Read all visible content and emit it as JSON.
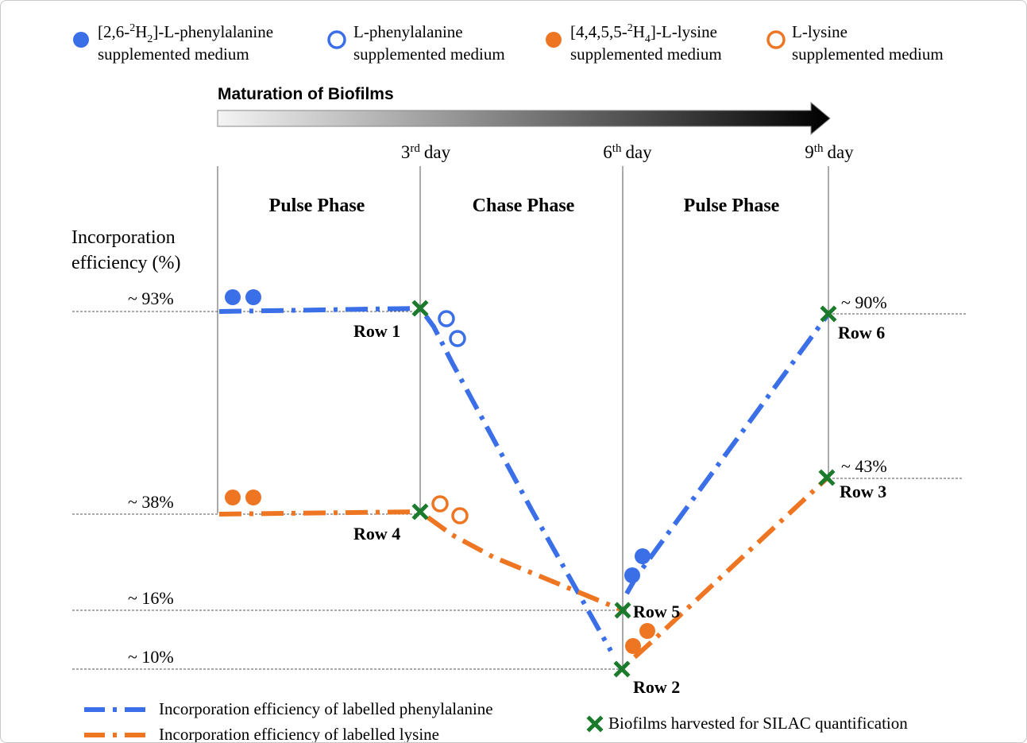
{
  "colors": {
    "phe": "#3b6fe8",
    "lys": "#ee7623",
    "harvest": "#1c7a2c",
    "guide": "#555555",
    "arrow_light": "#f4f4f4",
    "arrow_dark": "#000000"
  },
  "legend_top": [
    {
      "marker": "filled-circle",
      "color_key": "phe",
      "line1_prefix": "[2,6-",
      "line1_sup": "2",
      "line1_mid": "H",
      "line1_sub": "2",
      "line1_suffix": "]-L-phenylalanine",
      "line2": "supplemented medium"
    },
    {
      "marker": "open-circle",
      "color_key": "phe",
      "line1": "L-phenylalanine",
      "line2": "supplemented medium"
    },
    {
      "marker": "filled-circle",
      "color_key": "lys",
      "line1_prefix": "[4,4,5,5-",
      "line1_sup": "2",
      "line1_mid": "H",
      "line1_sub": "4",
      "line1_suffix": "]-L-lysine",
      "line2": "supplemented medium"
    },
    {
      "marker": "open-circle",
      "color_key": "lys",
      "line1": "L-lysine",
      "line2": "supplemented medium"
    }
  ],
  "timeline": {
    "title": "Maturation of Biofilms",
    "days": [
      {
        "num": "3",
        "sup": "rd",
        "word": "day"
      },
      {
        "num": "6",
        "sup": "th",
        "word": "day"
      },
      {
        "num": "9",
        "sup": "th",
        "word": "day"
      }
    ]
  },
  "phases": [
    "Pulse Phase",
    "Chase Phase",
    "Pulse Phase"
  ],
  "y_axis": {
    "label_line1": "Incorporation",
    "label_line2": "efficiency (%)",
    "levels_left": [
      "~ 93%",
      "~ 38%",
      "~ 16%",
      "~ 10%"
    ],
    "levels_right": [
      "~ 90%",
      "~ 43%"
    ]
  },
  "rows": [
    "Row 1",
    "Row 2",
    "Row 3",
    "Row 4",
    "Row 5",
    "Row 6"
  ],
  "legend_bottom": {
    "phe_line": "Incorporation efficiency of labelled phenylalanine",
    "lys_line": "Incorporation efficiency of labelled lysine",
    "harvest": "Biofilms harvested for SILAC quantification"
  }
}
